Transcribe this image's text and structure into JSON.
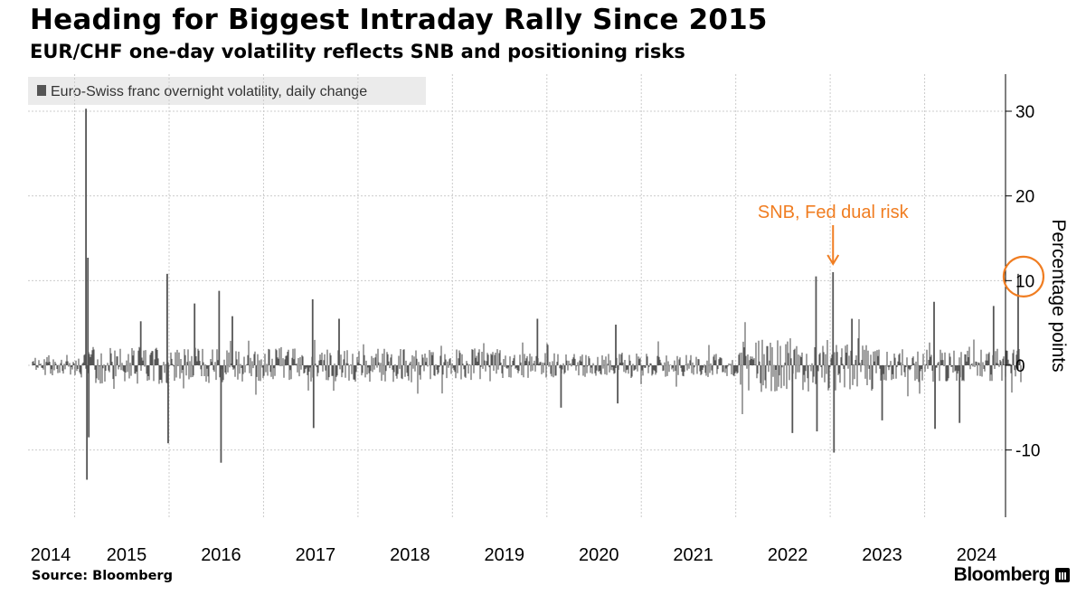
{
  "header": {
    "title": "Heading for Biggest Intraday Rally Since 2015",
    "subtitle": "EUR/CHF one-day volatility reflects SNB and positioning risks"
  },
  "footer": {
    "source": "Source: Bloomberg",
    "brand": "Bloomberg"
  },
  "colors": {
    "series": "#555555",
    "annotation": "#f07d21",
    "grid": "#cccccc",
    "legend_bg": "#ebebeb"
  },
  "chart_data": {
    "type": "bar",
    "title": "Heading for Biggest Intraday Rally Since 2015",
    "subtitle": "EUR/CHF one-day volatility reflects SNB and positioning risks",
    "legend": [
      "Euro-Swiss franc overnight volatility, daily change"
    ],
    "legend_position": "top-left",
    "ylabel": "Percentage points",
    "ylim": [
      -18,
      35
    ],
    "yticks": [
      30,
      20,
      10,
      0,
      -10
    ],
    "ytick_labels": [
      "30",
      "20",
      "10",
      "0",
      "-10"
    ],
    "xlim": [
      2014.0,
      2024.55
    ],
    "xticks": [
      2014,
      2015,
      2016,
      2017,
      2018,
      2019,
      2020,
      2021,
      2022,
      2023,
      2024
    ],
    "xtick_labels": [
      "2014",
      "2015",
      "2016",
      "2017",
      "2018",
      "2019",
      "2020",
      "2021",
      "2022",
      "2023",
      "2024"
    ],
    "grid": true,
    "series": [
      {
        "name": "Euro-Swiss franc overnight volatility, daily change",
        "frequency": "daily",
        "start": 2014.0,
        "end": 2024.47,
        "typical_amplitude": [
          {
            "from": 2014.0,
            "to": 2014.55,
            "amp": 1.2
          },
          {
            "from": 2014.55,
            "to": 2016.0,
            "amp": 2.2
          },
          {
            "from": 2016.0,
            "to": 2019.0,
            "amp": 2.0
          },
          {
            "from": 2019.0,
            "to": 2021.5,
            "amp": 1.5
          },
          {
            "from": 2021.5,
            "to": 2022.9,
            "amp": 3.2
          },
          {
            "from": 2022.9,
            "to": 2024.47,
            "amp": 2.0
          }
        ],
        "notable_points": [
          {
            "x": 2014.57,
            "y": 30.3
          },
          {
            "x": 2014.58,
            "y": -13.5
          },
          {
            "x": 2014.59,
            "y": 12.7
          },
          {
            "x": 2014.6,
            "y": -8.5
          },
          {
            "x": 2015.15,
            "y": 5.2
          },
          {
            "x": 2015.43,
            "y": 10.8
          },
          {
            "x": 2015.44,
            "y": -9.2
          },
          {
            "x": 2015.72,
            "y": 7.3
          },
          {
            "x": 2015.98,
            "y": 8.8
          },
          {
            "x": 2016.0,
            "y": -11.5
          },
          {
            "x": 2016.12,
            "y": 5.8
          },
          {
            "x": 2016.97,
            "y": 7.8
          },
          {
            "x": 2016.98,
            "y": -7.4
          },
          {
            "x": 2017.25,
            "y": 5.5
          },
          {
            "x": 2019.35,
            "y": 5.5
          },
          {
            "x": 2019.6,
            "y": -5.0
          },
          {
            "x": 2020.18,
            "y": 4.8
          },
          {
            "x": 2020.2,
            "y": -4.5
          },
          {
            "x": 2022.05,
            "y": -8.0
          },
          {
            "x": 2022.3,
            "y": 10.5
          },
          {
            "x": 2022.31,
            "y": -7.8
          },
          {
            "x": 2022.48,
            "y": 11.0
          },
          {
            "x": 2022.49,
            "y": -10.3
          },
          {
            "x": 2022.68,
            "y": 5.5
          },
          {
            "x": 2023.0,
            "y": -6.5
          },
          {
            "x": 2023.55,
            "y": 7.5
          },
          {
            "x": 2023.56,
            "y": -7.5
          },
          {
            "x": 2023.82,
            "y": -6.8
          },
          {
            "x": 2024.18,
            "y": 7.0
          },
          {
            "x": 2024.44,
            "y": 10.8
          }
        ]
      }
    ],
    "annotations": [
      {
        "text": "SNB, Fed dual risk",
        "x": 2022.48,
        "y": 11.0,
        "marker": "arrow"
      },
      {
        "text": "",
        "x": 2024.44,
        "y": 10.8,
        "marker": "circle"
      }
    ]
  }
}
